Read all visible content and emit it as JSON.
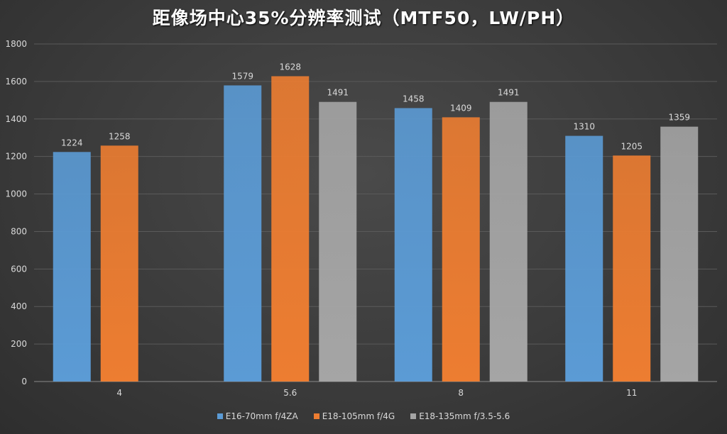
{
  "chart_data": {
    "type": "bar",
    "title": "距像场中心35%分辨率测试（MTF50，LW/PH）",
    "xlabel": "",
    "ylabel": "",
    "categories": [
      "4",
      "5.6",
      "8",
      "11"
    ],
    "series": [
      {
        "name": "E16-70mm f/4ZA",
        "color": "#5b9bd5",
        "values": [
          1224,
          1579,
          1458,
          1310
        ]
      },
      {
        "name": "E18-105mm f/4G",
        "color": "#ed7d31",
        "values": [
          1258,
          1628,
          1409,
          1205
        ]
      },
      {
        "name": "E18-135mm f/3.5-5.6",
        "color": "#a5a5a5",
        "values": [
          null,
          1491,
          1491,
          1359
        ]
      }
    ],
    "ylim": [
      0,
      1800
    ],
    "yticks": [
      0,
      200,
      400,
      600,
      800,
      1000,
      1200,
      1400,
      1600,
      1800
    ],
    "grid": true,
    "legend_position": "bottom",
    "data_labels": true
  }
}
